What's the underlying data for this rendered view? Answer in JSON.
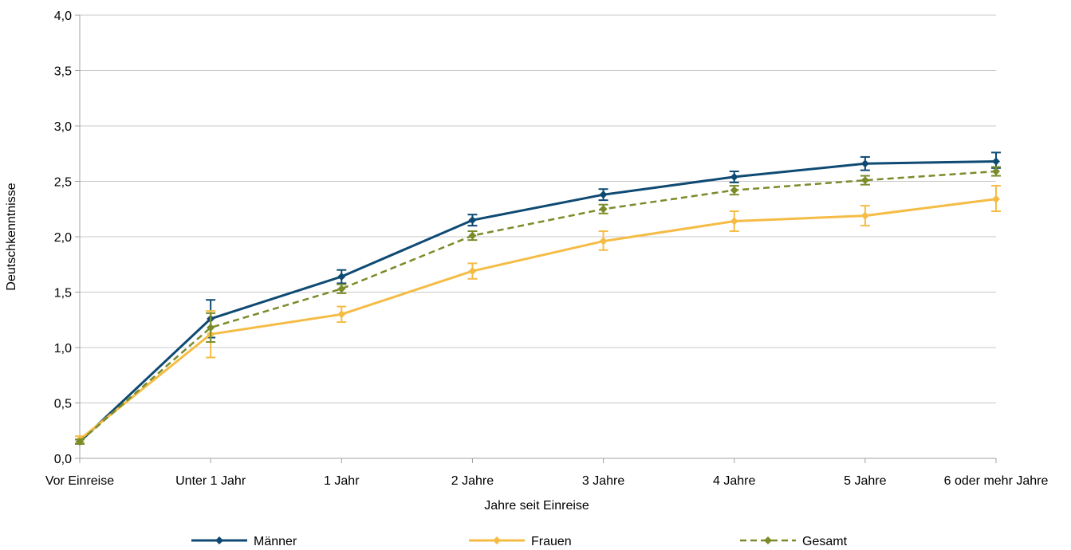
{
  "chart_data": {
    "type": "line",
    "xlabel": "Jahre seit Einreise",
    "ylabel": "Deutschkenntnisse",
    "categories": [
      "Vor Einreise",
      "Unter 1 Jahr",
      "1 Jahr",
      "2 Jahre",
      "3 Jahre",
      "4 Jahre",
      "5 Jahre",
      "6 oder mehr Jahre"
    ],
    "ylim": [
      0,
      4
    ],
    "yticks": [
      "0,0",
      "0,5",
      "1,0",
      "1,5",
      "2,0",
      "2,5",
      "3,0",
      "3,5",
      "4,0"
    ],
    "grid": true,
    "legend_position": "bottom",
    "series": [
      {
        "name": "Männer",
        "color": "#0e4a73",
        "dashed": false,
        "values": [
          0.15,
          1.26,
          1.64,
          2.15,
          2.38,
          2.54,
          2.66,
          2.68
        ],
        "error_low": [
          0.13,
          1.09,
          1.58,
          2.1,
          2.33,
          2.49,
          2.6,
          2.62
        ],
        "error_high": [
          0.17,
          1.43,
          1.7,
          2.2,
          2.43,
          2.59,
          2.72,
          2.76
        ]
      },
      {
        "name": "Frauen",
        "color": "#f5bc45",
        "dashed": false,
        "values": [
          0.17,
          1.12,
          1.3,
          1.69,
          1.96,
          2.14,
          2.19,
          2.34
        ],
        "error_low": [
          0.14,
          0.91,
          1.23,
          1.62,
          1.88,
          2.05,
          2.1,
          2.23
        ],
        "error_high": [
          0.2,
          1.33,
          1.37,
          1.76,
          2.05,
          2.23,
          2.28,
          2.46
        ]
      },
      {
        "name": "Gesamt",
        "color": "#7a8c2a",
        "dashed": true,
        "values": [
          0.15,
          1.18,
          1.53,
          2.01,
          2.25,
          2.42,
          2.51,
          2.59
        ],
        "error_low": [
          0.13,
          1.05,
          1.49,
          1.97,
          2.21,
          2.38,
          2.47,
          2.55
        ],
        "error_high": [
          0.17,
          1.31,
          1.57,
          2.05,
          2.29,
          2.46,
          2.55,
          2.63
        ]
      }
    ]
  }
}
